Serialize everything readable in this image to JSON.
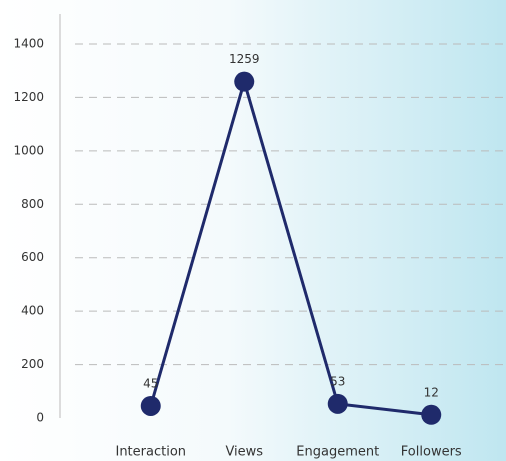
{
  "chart_data": {
    "type": "line",
    "categories": [
      "Interaction",
      "Views",
      "Engagement",
      "Followers"
    ],
    "series": [
      {
        "color": "#1f2a6b",
        "values": [
          45,
          1259,
          53,
          12
        ]
      }
    ],
    "ylim": [
      0,
      1400
    ],
    "yticks": [
      0,
      200,
      400,
      600,
      800,
      1000,
      1200,
      1400
    ],
    "grid": true
  }
}
